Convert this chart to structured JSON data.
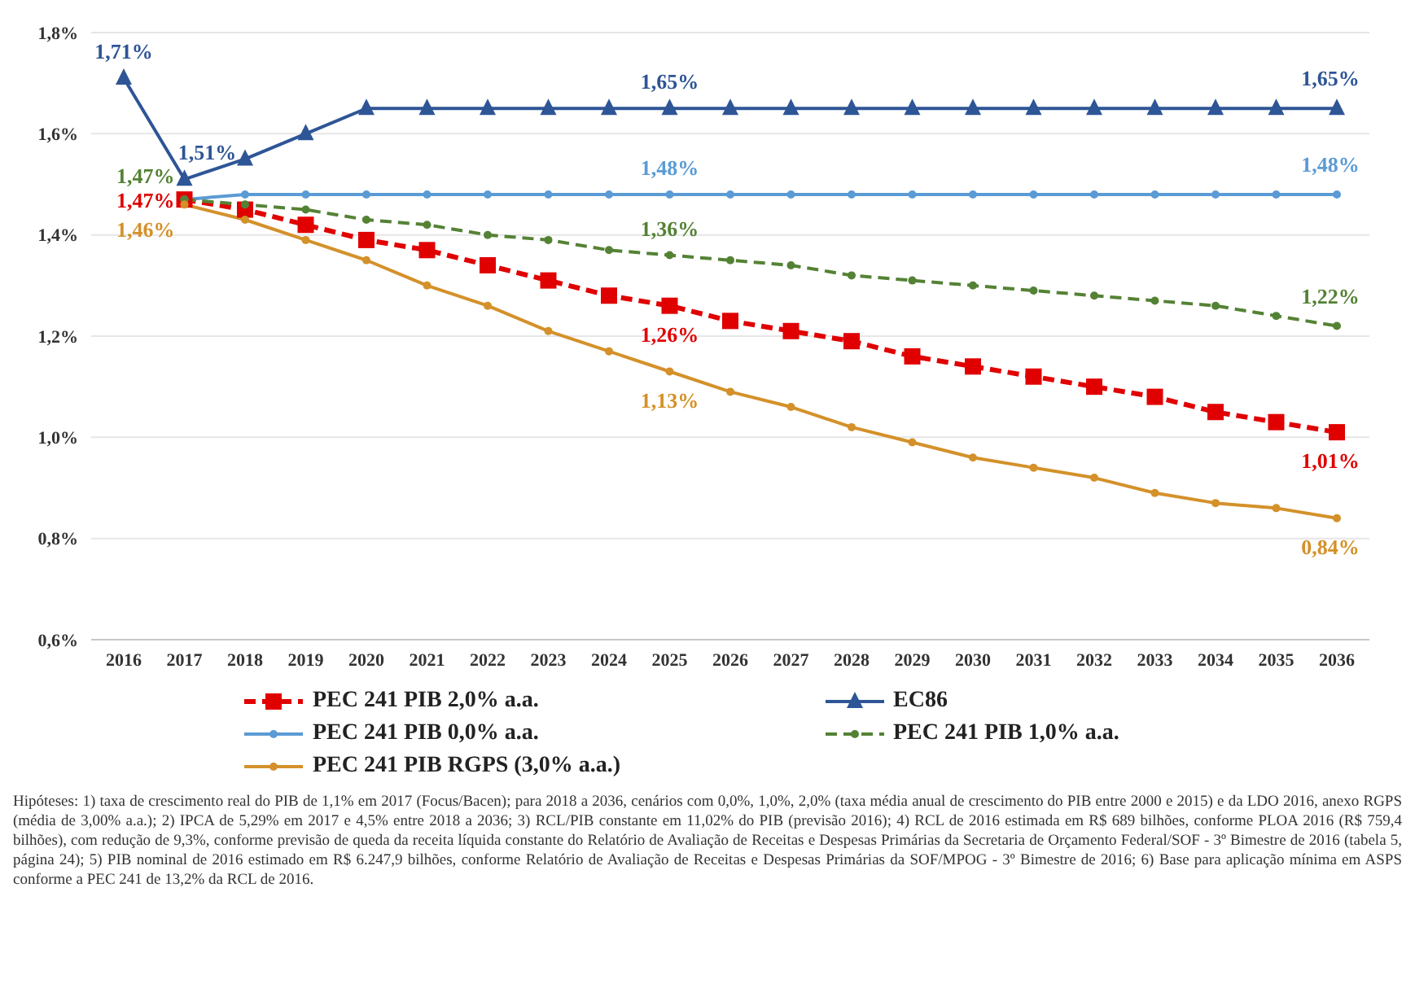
{
  "chart_data": {
    "type": "line",
    "categories": [
      "2016",
      "2017",
      "2018",
      "2019",
      "2020",
      "2021",
      "2022",
      "2023",
      "2024",
      "2025",
      "2026",
      "2027",
      "2028",
      "2029",
      "2030",
      "2031",
      "2032",
      "2033",
      "2034",
      "2035",
      "2036"
    ],
    "ylim": [
      0.6,
      1.8
    ],
    "yticks": [
      {
        "value": 0.6,
        "label": "0,6%"
      },
      {
        "value": 0.8,
        "label": "0,8%"
      },
      {
        "value": 1.0,
        "label": "1,0%"
      },
      {
        "value": 1.2,
        "label": "1,2%"
      },
      {
        "value": 1.4,
        "label": "1,4%"
      },
      {
        "value": 1.6,
        "label": "1,6%"
      },
      {
        "value": 1.8,
        "label": "1,8%"
      }
    ],
    "grid": "y",
    "legend": "bottom",
    "series": [
      {
        "name": "PEC 241 PIB 2,0% a.a.",
        "color": "#e00000",
        "marker": "square",
        "line_style": "dashed",
        "values": [
          null,
          1.47,
          1.45,
          1.42,
          1.39,
          1.37,
          1.34,
          1.31,
          1.28,
          1.26,
          1.23,
          1.21,
          1.19,
          1.16,
          1.14,
          1.12,
          1.1,
          1.08,
          1.05,
          1.03,
          1.01
        ],
        "value_labels": [
          null,
          "1,47%",
          null,
          null,
          null,
          null,
          null,
          null,
          null,
          "1,26%",
          null,
          null,
          null,
          null,
          null,
          null,
          null,
          null,
          null,
          null,
          "1,01%"
        ]
      },
      {
        "name": "EC86",
        "color": "#2e5596",
        "marker": "triangle",
        "line_style": "solid",
        "values": [
          1.71,
          1.51,
          1.55,
          1.6,
          1.65,
          1.65,
          1.65,
          1.65,
          1.65,
          1.65,
          1.65,
          1.65,
          1.65,
          1.65,
          1.65,
          1.65,
          1.65,
          1.65,
          1.65,
          1.65,
          1.65
        ],
        "value_labels": [
          "1,71%",
          "1,51%",
          null,
          null,
          null,
          null,
          null,
          null,
          null,
          "1,65%",
          null,
          null,
          null,
          null,
          null,
          null,
          null,
          null,
          null,
          null,
          "1,65%"
        ]
      },
      {
        "name": "PEC 241 PIB 0,0% a.a.",
        "color": "#5b9bd5",
        "marker": "circle",
        "line_style": "solid",
        "values": [
          null,
          1.47,
          1.48,
          1.48,
          1.48,
          1.48,
          1.48,
          1.48,
          1.48,
          1.48,
          1.48,
          1.48,
          1.48,
          1.48,
          1.48,
          1.48,
          1.48,
          1.48,
          1.48,
          1.48,
          1.48
        ],
        "value_labels": [
          null,
          null,
          null,
          null,
          null,
          null,
          null,
          null,
          null,
          "1,48%",
          null,
          null,
          null,
          null,
          null,
          null,
          null,
          null,
          null,
          null,
          "1,48%"
        ]
      },
      {
        "name": "PEC 241 PIB 1,0% a.a.",
        "color": "#548235",
        "marker": "circle",
        "line_style": "dashed",
        "values": [
          null,
          1.47,
          1.46,
          1.45,
          1.43,
          1.42,
          1.4,
          1.39,
          1.37,
          1.36,
          1.35,
          1.34,
          1.32,
          1.31,
          1.3,
          1.29,
          1.28,
          1.27,
          1.26,
          1.24,
          1.22
        ],
        "value_labels": [
          null,
          "1,47%",
          null,
          null,
          null,
          null,
          null,
          null,
          null,
          "1,36%",
          null,
          null,
          null,
          null,
          null,
          null,
          null,
          null,
          null,
          null,
          "1,22%"
        ]
      },
      {
        "name": "PEC 241 PIB RGPS (3,0% a.a.)",
        "color": "#d4912a",
        "marker": "circle",
        "line_style": "solid",
        "values": [
          null,
          1.46,
          1.43,
          1.39,
          1.35,
          1.3,
          1.26,
          1.21,
          1.17,
          1.13,
          1.09,
          1.06,
          1.02,
          0.99,
          0.96,
          0.94,
          0.92,
          0.89,
          0.87,
          0.86,
          0.84
        ],
        "value_labels": [
          null,
          "1,46%",
          null,
          null,
          null,
          null,
          null,
          null,
          null,
          "1,13%",
          null,
          null,
          null,
          null,
          null,
          null,
          null,
          null,
          null,
          null,
          "0,84%"
        ]
      }
    ],
    "annotations": [
      "Hipóteses: 1) taxa de crescimento real do PIB de 1,1% em 2017 (Focus/Bacen); para 2018 a 2036, cenários com 0,0%, 1,0%, 2,0% (taxa média anual de crescimento do PIB entre 2000 e 2015) e da LDO 2016, anexo RGPS (média de 3,00% a.a.); 2) IPCA de 5,29% em 2017 e 4,5% entre 2018 a 2036; 3) RCL/PIB constante em 11,02% do PIB (previsão 2016); 4) RCL de 2016 estimada em R$ 689 bilhões, conforme PLOA 2016 (R$ 759,4 bilhões), com redução de 9,3%, conforme previsão de queda da receita líquida constante do Relatório de Avaliação de Receitas e Despesas Primárias da Secretaria de Orçamento Federal/SOF - 3º Bimestre de 2016 (tabela 5, página 24); 5) PIB nominal de 2016 estimado em R$ 6.247,9 bilhões, conforme Relatório de Avaliação de Receitas e Despesas Primárias da SOF/MPOG - 3º Bimestre de 2016; 6) Base para aplicação mínima em ASPS conforme a PEC 241 de 13,2% da RCL de 2016."
    ]
  }
}
